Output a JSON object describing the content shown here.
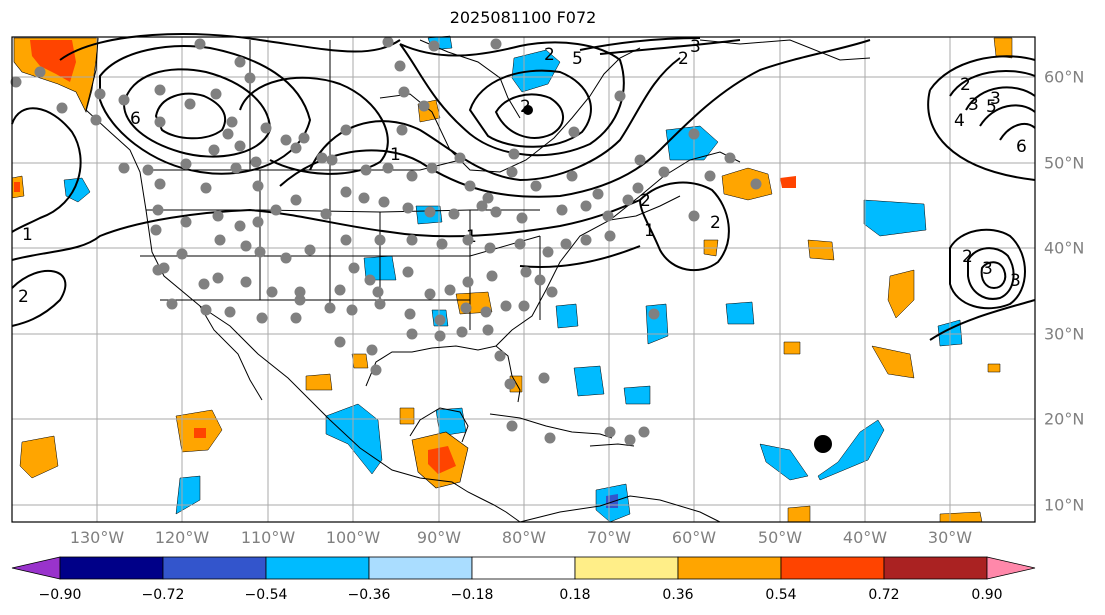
{
  "title": "2025081100 F072",
  "lon_labels": [
    "130°W",
    "120°W",
    "110°W",
    "100°W",
    "90°W",
    "80°W",
    "70°W",
    "60°W",
    "50°W",
    "40°W",
    "30°W"
  ],
  "lat_labels": [
    "60°N",
    "50°N",
    "40°N",
    "30°N",
    "20°N",
    "10°N"
  ],
  "colorbar": {
    "colors": [
      "#9933cc",
      "#000088",
      "#3355cc",
      "#00bbff",
      "#aaddff",
      "#ffffff",
      "#ffee88",
      "#ffa500",
      "#ff4400",
      "#aa2222",
      "#ff88aa"
    ],
    "tick_labels": [
      "−0.90",
      "−0.72",
      "−0.54",
      "−0.36",
      "−0.18",
      "0.18",
      "0.36",
      "0.54",
      "0.72",
      "0.90"
    ]
  },
  "contour_labels": [
    "1",
    "1",
    "2",
    "2",
    "6",
    "5",
    "3",
    "2",
    "2",
    "3",
    "2",
    "1",
    "2",
    "1",
    "2",
    "3",
    "4",
    "5",
    "6",
    "2",
    "3",
    "3"
  ],
  "marker_color": "#808080"
}
